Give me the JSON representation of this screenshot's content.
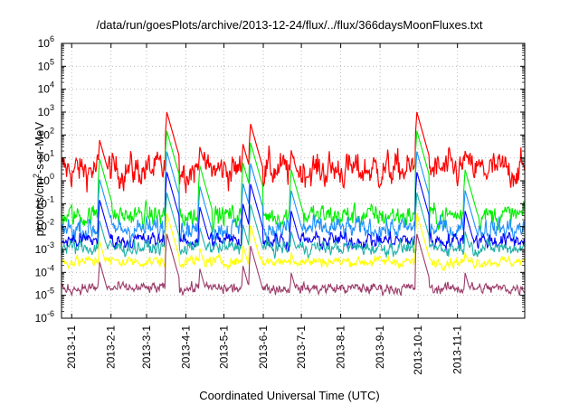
{
  "chart_data": {
    "type": "line",
    "title": "/data/run/goesPlots/archive/2013-12-24/flux/../flux/366daysMoonFluxes.txt",
    "xlabel": "Coordinated Universal Time (UTC)",
    "ylabel_main": "protons/cm",
    "ylabel_sup": "2",
    "ylabel_tail": "-s-sr-MeV",
    "yscale": "log",
    "ylim": [
      1e-06,
      1000000
    ],
    "yticks": [
      {
        "exp": "-6",
        "value": 1e-06
      },
      {
        "exp": "-5",
        "value": 1e-05
      },
      {
        "exp": "-4",
        "value": 0.0001
      },
      {
        "exp": "-3",
        "value": 0.001
      },
      {
        "exp": "-2",
        "value": 0.01
      },
      {
        "exp": "-1",
        "value": 0.1
      },
      {
        "exp": "0",
        "value": 1
      },
      {
        "exp": "1",
        "value": 10
      },
      {
        "exp": "2",
        "value": 100
      },
      {
        "exp": "3",
        "value": 1000
      },
      {
        "exp": "4",
        "value": 10000
      },
      {
        "exp": "5",
        "value": 100000
      },
      {
        "exp": "6",
        "value": 1000000
      }
    ],
    "ytick_base": "10",
    "xlim": [
      "2012-12-24",
      "2013-12-24"
    ],
    "xticks": [
      "2013-1-1",
      "2013-2-1",
      "2013-3-1",
      "2013-4-1",
      "2013-5-1",
      "2013-6-1",
      "2013-7-1",
      "2013-8-1",
      "2013-9-1",
      "2013-10-1",
      "2013-11-1"
    ],
    "xtick_dates": [
      "2013-01-01",
      "2013-02-01",
      "2013-03-01",
      "2013-04-01",
      "2013-05-01",
      "2013-06-01",
      "2013-07-01",
      "2013-08-01",
      "2013-09-01",
      "2013-10-01",
      "2013-11-01"
    ],
    "grid": true,
    "events": [
      {
        "date": "2013-01-23",
        "peak": 60
      },
      {
        "date": "2013-03-17",
        "peak": 1000
      },
      {
        "date": "2013-04-12",
        "peak": 30
      },
      {
        "date": "2013-05-16",
        "peak": 40
      },
      {
        "date": "2013-05-22",
        "peak": 300
      },
      {
        "date": "2013-06-23",
        "peak": 20
      },
      {
        "date": "2013-09-30",
        "peak": 1000
      },
      {
        "date": "2013-11-07",
        "peak": 20
      }
    ],
    "series": [
      {
        "color": "#ff0000",
        "baseline": 3,
        "noise": 0.45
      },
      {
        "color": "#00ee00",
        "baseline": 0.03,
        "noise": 0.3
      },
      {
        "color": "#1e90ff",
        "baseline": 0.008,
        "noise": 0.3
      },
      {
        "color": "#0000ff",
        "baseline": 0.0025,
        "noise": 0.22
      },
      {
        "color": "#20b2aa",
        "baseline": 0.0012,
        "noise": 0.2
      },
      {
        "color": "#ffff00",
        "baseline": 0.0003,
        "noise": 0.15
      },
      {
        "color": "#9b3d6a",
        "baseline": 2e-05,
        "noise": 0.15
      }
    ]
  }
}
